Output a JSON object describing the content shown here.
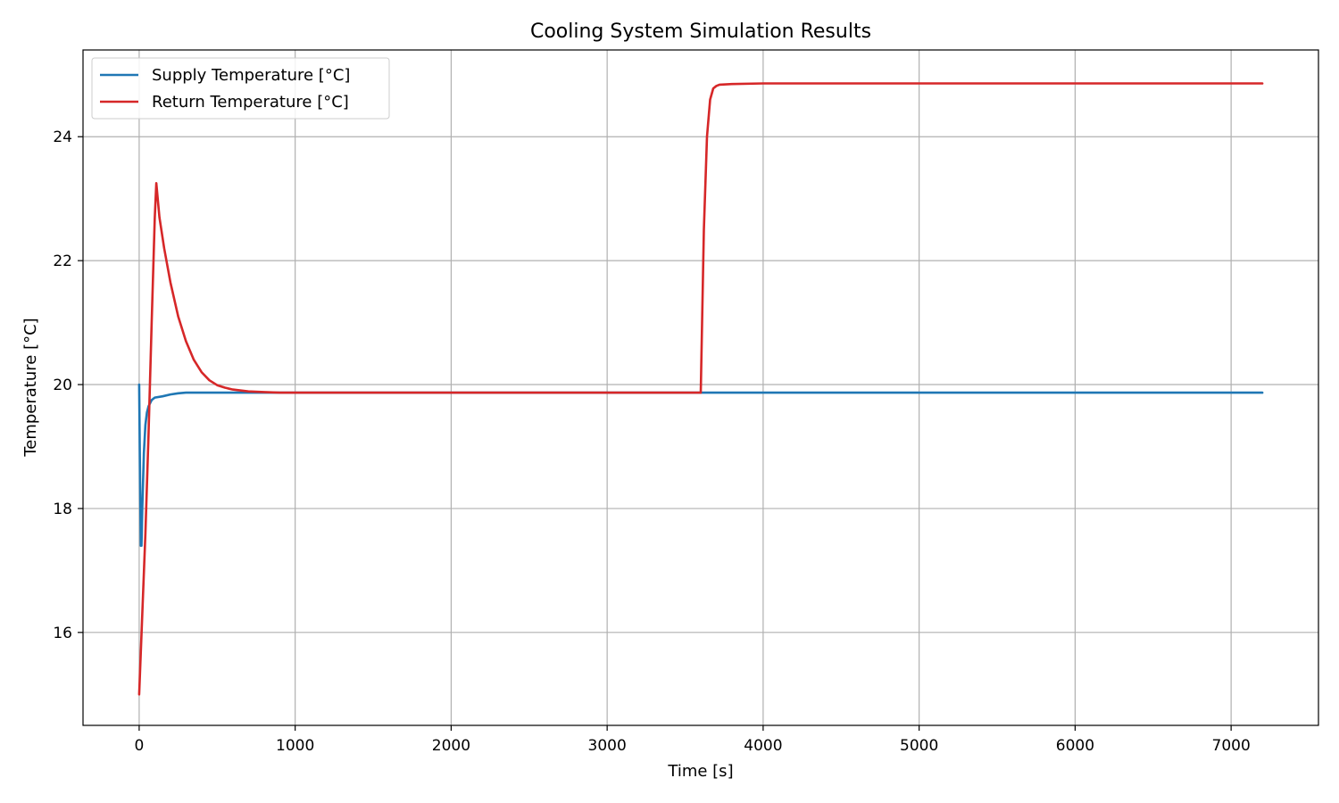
{
  "chart_data": {
    "type": "line",
    "title": "Cooling System Simulation Results",
    "xlabel": "Time [s]",
    "ylabel": "Temperature [°C]",
    "xlim": [
      -360,
      7560
    ],
    "ylim": [
      14.5,
      25.4
    ],
    "xticks": [
      0,
      1000,
      2000,
      3000,
      4000,
      5000,
      6000,
      7000
    ],
    "yticks": [
      16,
      18,
      20,
      22,
      24
    ],
    "grid": true,
    "legend_position": "top-left",
    "series": [
      {
        "name": "Supply Temperature [°C]",
        "color": "#1f77b4",
        "x": [
          0,
          5,
          10,
          15,
          20,
          30,
          40,
          50,
          60,
          80,
          100,
          150,
          200,
          250,
          300,
          400,
          600,
          1000,
          3600,
          3700,
          4000,
          5000,
          6000,
          7200
        ],
        "y": [
          20.0,
          18.6,
          17.4,
          17.4,
          18.0,
          18.9,
          19.35,
          19.55,
          19.65,
          19.75,
          19.79,
          19.81,
          19.84,
          19.86,
          19.87,
          19.87,
          19.87,
          19.87,
          19.87,
          19.87,
          19.87,
          19.87,
          19.87,
          19.87
        ]
      },
      {
        "name": "Return Temperature [°C]",
        "color": "#d62728",
        "x": [
          0,
          20,
          40,
          60,
          80,
          100,
          110,
          130,
          160,
          200,
          250,
          300,
          350,
          400,
          450,
          500,
          550,
          600,
          700,
          800,
          900,
          1000,
          1500,
          2000,
          3000,
          3600,
          3620,
          3640,
          3660,
          3680,
          3700,
          3720,
          3800,
          4000,
          5000,
          6000,
          7200
        ],
        "y": [
          15.0,
          16.3,
          17.6,
          19.2,
          21.0,
          22.7,
          23.25,
          22.7,
          22.2,
          21.65,
          21.1,
          20.7,
          20.4,
          20.2,
          20.07,
          19.99,
          19.95,
          19.92,
          19.89,
          19.88,
          19.87,
          19.87,
          19.87,
          19.87,
          19.87,
          19.87,
          22.5,
          24.0,
          24.6,
          24.78,
          24.82,
          24.84,
          24.85,
          24.86,
          24.86,
          24.86,
          24.86
        ]
      }
    ]
  }
}
